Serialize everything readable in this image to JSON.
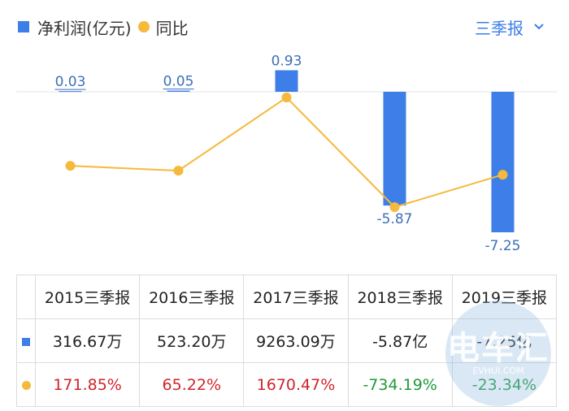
{
  "legend": {
    "bar_label": "净利润(亿元)",
    "line_label": "同比"
  },
  "period_selector": {
    "label": "三季报"
  },
  "chart_data": {
    "type": "bar",
    "categories": [
      "2015三季报",
      "2016三季报",
      "2017三季报",
      "2018三季报",
      "2019三季报"
    ],
    "series": [
      {
        "name": "净利润(亿元)",
        "type": "bar",
        "values": [
          0.03,
          0.05,
          0.93,
          -5.87,
          -7.25
        ],
        "labels": [
          "0.03",
          "0.05",
          "0.93",
          "-5.87",
          "-7.25"
        ],
        "color": "#3d7ee8"
      },
      {
        "name": "同比",
        "type": "line",
        "values": [
          171.85,
          65.22,
          1670.47,
          -734.19,
          -23.34
        ],
        "color": "#f5b93c"
      }
    ],
    "grid": false
  },
  "table": {
    "headers": [
      "2015三季报",
      "2016三季报",
      "2017三季报",
      "2018三季报",
      "2019三季报"
    ],
    "profit_row": [
      "316.67万",
      "523.20万",
      "9263.09万",
      "-5.87亿",
      "-7.25亿"
    ],
    "yoy_row": [
      "171.85%",
      "65.22%",
      "1670.47%",
      "-734.19%",
      "-23.34%"
    ]
  },
  "watermark": {
    "text": "电车汇",
    "sub": "EVHUI.COM"
  },
  "colors": {
    "bar": "#3d7ee8",
    "line": "#f5b93c",
    "accent": "#3d7ee8",
    "positive": "#d0242c",
    "negative": "#1e9a3a"
  }
}
